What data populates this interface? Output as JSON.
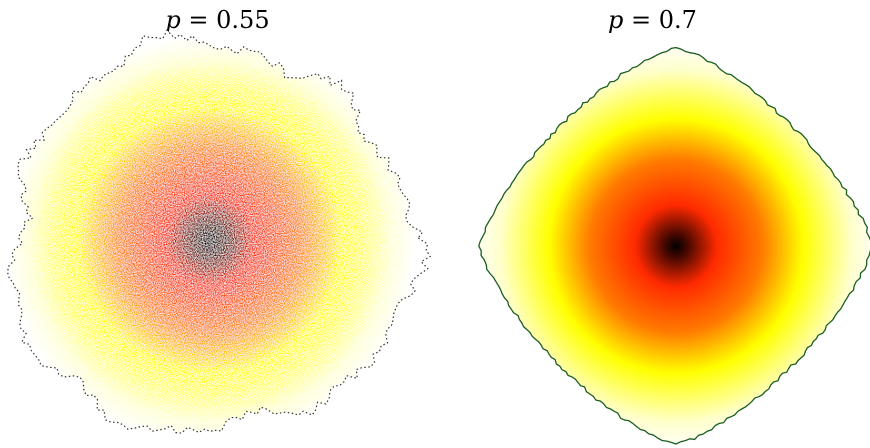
{
  "panels": [
    {
      "title": {
        "var": "p",
        "eq": " = ",
        "value": "0.55"
      },
      "colors": {
        "center": "#000000",
        "mid": "#ff2a00",
        "outer": "#ffff00",
        "edge": "#ffffcc",
        "boundary": "#333333"
      }
    },
    {
      "title": {
        "var": "p",
        "eq": " = ",
        "value": "0.7"
      },
      "colors": {
        "center": "#000000",
        "mid": "#ff2a00",
        "outer": "#ffff00",
        "edge": "#ffffcc",
        "boundary": "#1b5e20"
      }
    }
  ]
}
